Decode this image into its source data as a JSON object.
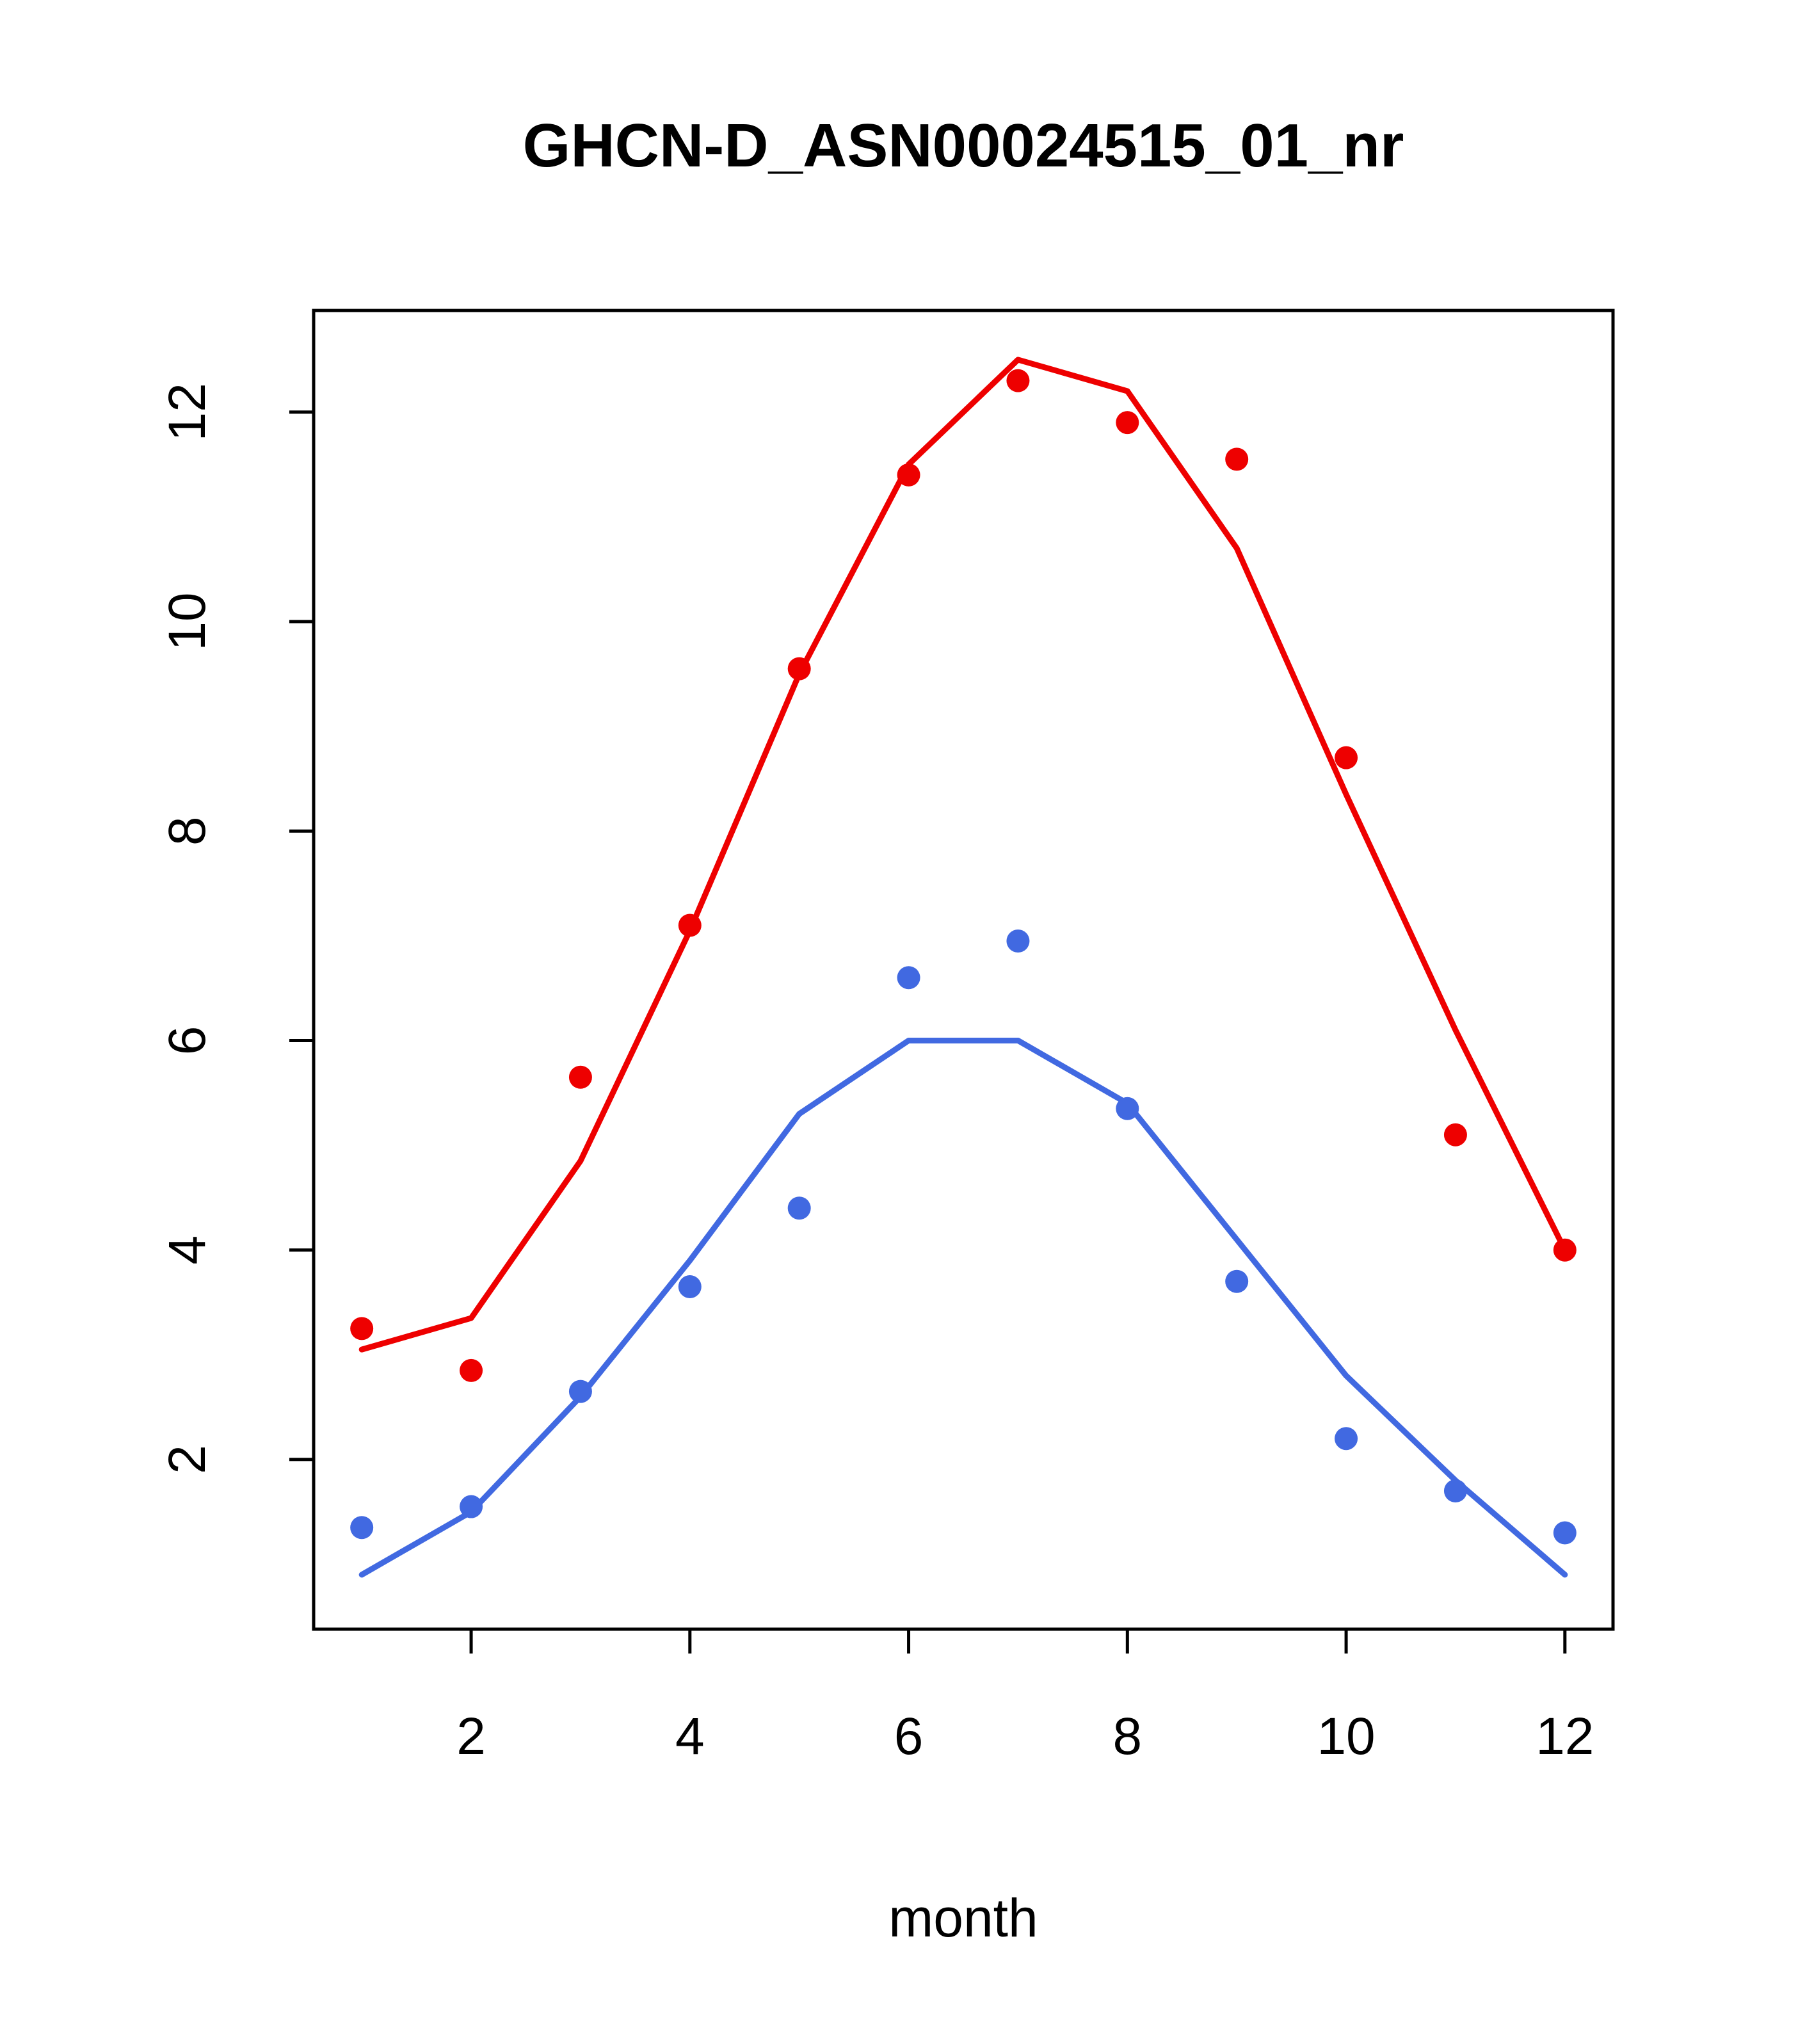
{
  "page": {
    "background": "#ffffff"
  },
  "chart_data": {
    "type": "line",
    "title": "GHCN-D_ASN00024515_01_nr",
    "xlabel": "month",
    "ylabel": "",
    "grid": false,
    "legend": null,
    "x": [
      1,
      2,
      3,
      4,
      5,
      6,
      7,
      8,
      9,
      10,
      11,
      12
    ],
    "xlim": [
      0.56,
      12.44
    ],
    "ylim": [
      0.38,
      12.97
    ],
    "xticks": [
      2,
      4,
      6,
      8,
      10,
      12
    ],
    "yticks": [
      2,
      4,
      6,
      8,
      10,
      12
    ],
    "colors": {
      "red": "#ee0000",
      "blue": "#4169e1",
      "axis": "#000000"
    },
    "series": [
      {
        "name": "red-line",
        "type": "line",
        "color": "#ee0000",
        "values": [
          3.05,
          3.35,
          4.85,
          7.05,
          9.5,
          11.5,
          12.5,
          12.2,
          10.7,
          8.35,
          6.1,
          4.0
        ]
      },
      {
        "name": "blue-line",
        "type": "line",
        "color": "#4169e1",
        "values": [
          0.9,
          1.5,
          2.6,
          3.9,
          5.3,
          6.0,
          6.0,
          5.4,
          4.1,
          2.8,
          1.8,
          0.9
        ]
      },
      {
        "name": "red-points",
        "type": "scatter",
        "color": "#ee0000",
        "values": [
          3.25,
          2.85,
          5.65,
          7.1,
          9.55,
          11.4,
          12.3,
          11.9,
          11.55,
          8.7,
          5.1,
          4.0
        ]
      },
      {
        "name": "blue-points",
        "type": "scatter",
        "color": "#4169e1",
        "values": [
          1.35,
          1.55,
          2.65,
          3.65,
          4.4,
          6.6,
          6.95,
          5.35,
          3.7,
          2.2,
          1.7,
          1.3
        ]
      }
    ]
  }
}
